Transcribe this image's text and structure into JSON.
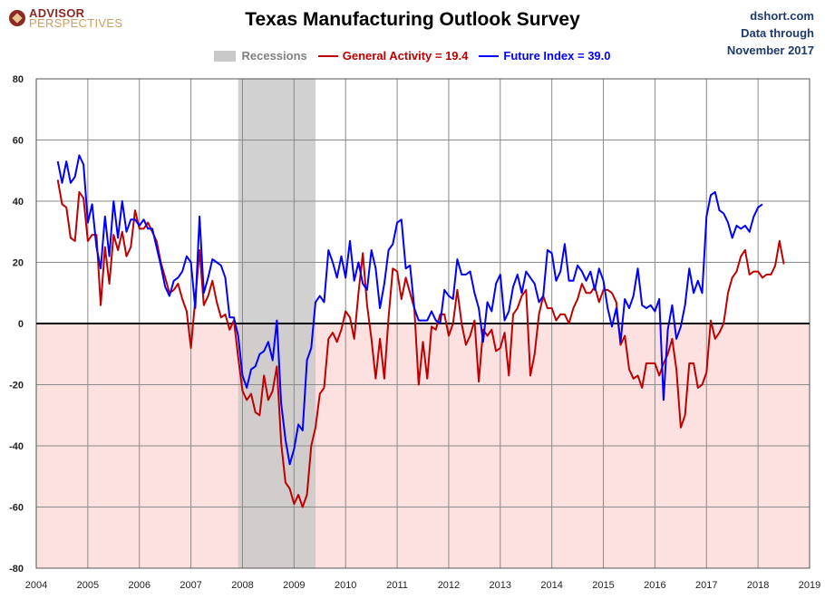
{
  "header": {
    "logo_line1": "ADVISOR",
    "logo_line2": "PERSPECTIVES",
    "source_line1": "dshort.com",
    "source_line2": "Data through",
    "source_line3": "November 2017"
  },
  "chart_data": {
    "type": "line",
    "title": "Texas Manufacturing Outlook Survey",
    "xlim": [
      2004,
      2019
    ],
    "ylim": [
      -80,
      80
    ],
    "x_ticks": [
      2004,
      2005,
      2006,
      2007,
      2008,
      2009,
      2010,
      2011,
      2012,
      2013,
      2014,
      2015,
      2016,
      2017,
      2018,
      2019
    ],
    "y_ticks": [
      80,
      60,
      40,
      20,
      0,
      -20,
      -40,
      -60,
      -80
    ],
    "grid": true,
    "legend_position": "top-center",
    "recession": {
      "label": "Recessions",
      "start": 2007.917,
      "end": 2009.417,
      "color": "#c9c9c9"
    },
    "negative_shading_color": "#fde0e0",
    "colors": {
      "general": "#c00000",
      "future": "#0000ff"
    },
    "series": [
      {
        "name": "General Activity = 19.4",
        "start": 2004.417,
        "step": 0.0833333,
        "values": [
          47,
          39,
          38,
          28,
          27,
          43,
          41,
          27,
          29,
          29,
          6,
          25,
          13,
          29,
          24,
          30,
          22,
          25,
          37,
          31,
          31,
          33,
          30,
          27,
          20,
          15,
          10,
          11,
          13,
          8,
          4,
          -8,
          8,
          24,
          6,
          9,
          14,
          7,
          2,
          3,
          -2,
          1,
          -11,
          -22,
          -25,
          -23,
          -29,
          -30,
          -17,
          -25,
          -22,
          -14,
          -39,
          -52,
          -54,
          -59,
          -56,
          -60,
          -56,
          -40,
          -34,
          -23,
          -21,
          -5,
          -3,
          -6,
          -2,
          4,
          2,
          -5,
          10,
          23,
          6,
          -5,
          -18,
          -5,
          -18,
          2,
          18,
          17,
          8,
          15,
          10,
          5,
          -20,
          -6,
          -18,
          -1,
          -2,
          3,
          3,
          -4,
          0,
          11,
          0,
          -7,
          -4,
          1,
          -19,
          -2,
          -4,
          -2,
          -9,
          -8,
          -3,
          -17,
          3,
          5,
          9,
          11,
          -17,
          -10,
          3,
          9,
          5,
          5,
          1,
          3,
          3,
          0,
          5,
          8,
          13,
          10,
          10,
          12,
          7,
          11,
          11,
          10,
          7,
          -7,
          -4,
          -15,
          -18,
          -17,
          -21,
          -13,
          -13,
          -13,
          -17,
          -13,
          -10,
          -5,
          -15,
          -34,
          -30,
          -13,
          -13,
          -21,
          -20,
          -16,
          1,
          -5,
          -3,
          0,
          10,
          15,
          17,
          22,
          24,
          16,
          17,
          17,
          15,
          16,
          16,
          19,
          27,
          19.4
        ]
      },
      {
        "name": "Future Index = 39.0",
        "start": 2004.417,
        "step": 0.0833333,
        "values": [
          53,
          46,
          53,
          46,
          48,
          55,
          52,
          33,
          39,
          25,
          18,
          35,
          22,
          40,
          28,
          40,
          30,
          34,
          34,
          32,
          34,
          31,
          31,
          25,
          19,
          12,
          9,
          14,
          15,
          17,
          22,
          20,
          5,
          35,
          10,
          15,
          21,
          20,
          19,
          15,
          2,
          2,
          -4,
          -17,
          -21,
          -15,
          -14,
          -10,
          -9,
          -6,
          -12,
          1,
          -26,
          -38,
          -46,
          -41,
          -33,
          -35,
          -12,
          -8,
          7,
          9,
          7,
          24,
          20,
          15,
          22,
          15,
          27,
          14,
          20,
          13,
          11,
          24,
          18,
          5,
          13,
          24,
          26,
          33,
          34,
          18,
          19,
          5,
          1,
          1,
          1,
          4,
          1,
          0,
          11,
          9,
          8,
          21,
          16,
          16,
          17,
          10,
          5,
          -6,
          7,
          4,
          13,
          16,
          1,
          4,
          12,
          16,
          10,
          17,
          15,
          13,
          7,
          9,
          24,
          23,
          14,
          17,
          26,
          14,
          14,
          19,
          17,
          14,
          17,
          11,
          18,
          14,
          5,
          -1,
          5,
          -6,
          8,
          5,
          9,
          18,
          6,
          5,
          6,
          4,
          8,
          -25,
          -2,
          6,
          -5,
          -1,
          6,
          18,
          10,
          14,
          10,
          35,
          42,
          43,
          37,
          36,
          33,
          28,
          32,
          31,
          32,
          30,
          35,
          38,
          39
        ]
      }
    ]
  }
}
